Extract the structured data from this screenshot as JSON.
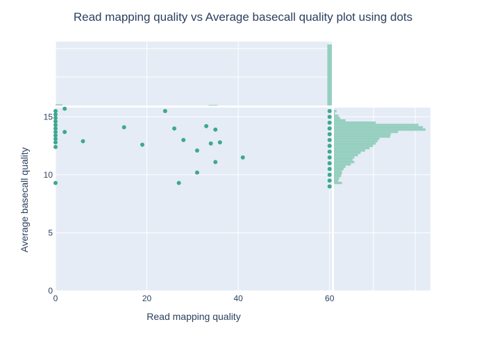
{
  "colors": {
    "plot_background": "#e5ecf6",
    "grid": "#ffffff",
    "point": "#3ea88e",
    "histogram": "#96cfbf",
    "text": "#2a3f5f"
  },
  "chart_data": {
    "type": "scatter",
    "title": "Read mapping quality vs Average basecall quality plot using dots",
    "xlabel": "Read mapping quality",
    "ylabel": "Average basecall quality",
    "xlim": [
      0,
      60.5
    ],
    "ylim": [
      0,
      15.8
    ],
    "xticks": [
      0,
      20,
      40,
      60
    ],
    "yticks": [
      0,
      5,
      10,
      15
    ],
    "grid": true,
    "marker": "dots",
    "points": [
      {
        "x": 0,
        "y": 15.5
      },
      {
        "x": 0,
        "y": 15.2
      },
      {
        "x": 0,
        "y": 14.9
      },
      {
        "x": 0,
        "y": 14.6
      },
      {
        "x": 0,
        "y": 14.3
      },
      {
        "x": 0,
        "y": 14.0
      },
      {
        "x": 0,
        "y": 13.7
      },
      {
        "x": 0,
        "y": 13.4
      },
      {
        "x": 0,
        "y": 13.1
      },
      {
        "x": 0,
        "y": 12.8
      },
      {
        "x": 0,
        "y": 12.4
      },
      {
        "x": 0,
        "y": 9.3
      },
      {
        "x": 2,
        "y": 15.7
      },
      {
        "x": 2,
        "y": 13.7
      },
      {
        "x": 6,
        "y": 12.9
      },
      {
        "x": 15,
        "y": 14.1
      },
      {
        "x": 19,
        "y": 12.6
      },
      {
        "x": 24,
        "y": 15.5
      },
      {
        "x": 26,
        "y": 14.0
      },
      {
        "x": 27,
        "y": 9.3
      },
      {
        "x": 28,
        "y": 13.0
      },
      {
        "x": 31,
        "y": 12.1
      },
      {
        "x": 31,
        "y": 10.2
      },
      {
        "x": 33,
        "y": 14.2
      },
      {
        "x": 34,
        "y": 12.7
      },
      {
        "x": 35,
        "y": 13.9
      },
      {
        "x": 35,
        "y": 11.1
      },
      {
        "x": 36,
        "y": 12.8
      },
      {
        "x": 41,
        "y": 11.5
      },
      {
        "x": 60,
        "y": 15.5
      },
      {
        "x": 60,
        "y": 15.0
      },
      {
        "x": 60,
        "y": 14.5
      },
      {
        "x": 60,
        "y": 14.0
      },
      {
        "x": 60,
        "y": 13.5
      },
      {
        "x": 60,
        "y": 13.0
      },
      {
        "x": 60,
        "y": 12.5
      },
      {
        "x": 60,
        "y": 12.0
      },
      {
        "x": 60,
        "y": 11.5
      },
      {
        "x": 60,
        "y": 11.0
      },
      {
        "x": 60,
        "y": 10.5
      },
      {
        "x": 60,
        "y": 10.0
      },
      {
        "x": 60,
        "y": 9.5
      },
      {
        "x": 60,
        "y": 9.0
      }
    ],
    "marginal_x_histogram": {
      "bins": [
        {
          "x0": 0,
          "x1": 1.5,
          "count": 2
        },
        {
          "x0": 33.5,
          "x1": 35.5,
          "count": 1
        },
        {
          "x0": 59.5,
          "x1": 60.5,
          "count": 100
        }
      ]
    },
    "marginal_y_histogram": {
      "bins": [
        {
          "y0": 15.4,
          "y1": 15.6,
          "count": 3
        },
        {
          "y0": 15.2,
          "y1": 15.4,
          "count": 1
        },
        {
          "y0": 15.0,
          "y1": 15.2,
          "count": 5
        },
        {
          "y0": 14.8,
          "y1": 15.0,
          "count": 7
        },
        {
          "y0": 14.6,
          "y1": 14.8,
          "count": 13
        },
        {
          "y0": 14.4,
          "y1": 14.6,
          "count": 47
        },
        {
          "y0": 14.2,
          "y1": 14.4,
          "count": 95
        },
        {
          "y0": 14.0,
          "y1": 14.2,
          "count": 100
        },
        {
          "y0": 13.8,
          "y1": 14.0,
          "count": 103
        },
        {
          "y0": 13.6,
          "y1": 13.8,
          "count": 72
        },
        {
          "y0": 13.4,
          "y1": 13.6,
          "count": 64
        },
        {
          "y0": 13.2,
          "y1": 13.4,
          "count": 63
        },
        {
          "y0": 13.0,
          "y1": 13.2,
          "count": 51
        },
        {
          "y0": 12.8,
          "y1": 13.0,
          "count": 49
        },
        {
          "y0": 12.6,
          "y1": 12.8,
          "count": 47
        },
        {
          "y0": 12.4,
          "y1": 12.6,
          "count": 44
        },
        {
          "y0": 12.2,
          "y1": 12.4,
          "count": 40
        },
        {
          "y0": 12.0,
          "y1": 12.2,
          "count": 35
        },
        {
          "y0": 11.8,
          "y1": 12.0,
          "count": 30
        },
        {
          "y0": 11.6,
          "y1": 11.8,
          "count": 27
        },
        {
          "y0": 11.4,
          "y1": 11.6,
          "count": 23
        },
        {
          "y0": 11.2,
          "y1": 11.4,
          "count": 21
        },
        {
          "y0": 11.0,
          "y1": 11.2,
          "count": 23
        },
        {
          "y0": 10.8,
          "y1": 11.0,
          "count": 19
        },
        {
          "y0": 10.6,
          "y1": 10.8,
          "count": 13
        },
        {
          "y0": 10.4,
          "y1": 10.6,
          "count": 11
        },
        {
          "y0": 10.2,
          "y1": 10.4,
          "count": 9
        },
        {
          "y0": 10.0,
          "y1": 10.2,
          "count": 9
        },
        {
          "y0": 9.8,
          "y1": 10.0,
          "count": 8
        },
        {
          "y0": 9.6,
          "y1": 9.8,
          "count": 6
        },
        {
          "y0": 9.4,
          "y1": 9.6,
          "count": 5
        },
        {
          "y0": 9.2,
          "y1": 9.4,
          "count": 9
        }
      ]
    }
  }
}
